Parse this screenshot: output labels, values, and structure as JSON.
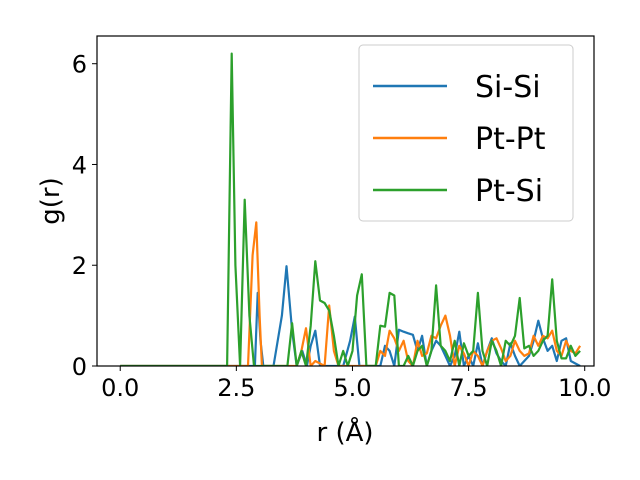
{
  "chart_data": {
    "type": "line",
    "title": "",
    "xlabel": "r (Å)",
    "ylabel": "g(r)",
    "xlim": [
      -0.5,
      10.2
    ],
    "ylim": [
      0,
      6.55
    ],
    "xticks": [
      0.0,
      2.5,
      5.0,
      7.5,
      10.0
    ],
    "xtick_labels": [
      "0.0",
      "2.5",
      "5.0",
      "7.5",
      "10.0"
    ],
    "yticks": [
      0,
      2,
      4,
      6
    ],
    "ytick_labels": [
      "0",
      "2",
      "4",
      "6"
    ],
    "grid": false,
    "legend_position": "top-right",
    "series": [
      {
        "name": "Si-Si",
        "color": "#1f77b4",
        "x": [
          0.0,
          2.9,
          2.96,
          3.02,
          3.08,
          3.3,
          3.48,
          3.58,
          3.7,
          3.8,
          3.92,
          4.02,
          4.1,
          4.2,
          4.3,
          4.8,
          4.95,
          5.05,
          5.15,
          5.6,
          5.7,
          5.8,
          5.9,
          6.0,
          6.1,
          6.2,
          6.3,
          6.4,
          6.5,
          6.6,
          6.7,
          6.8,
          6.9,
          7.0,
          7.1,
          7.2,
          7.3,
          7.4,
          7.5,
          7.6,
          7.7,
          7.8,
          7.9,
          8.0,
          8.1,
          8.2,
          8.3,
          8.4,
          8.5,
          8.6,
          8.7,
          8.8,
          8.9,
          9.0,
          9.1,
          9.2,
          9.3,
          9.4,
          9.5,
          9.6,
          9.7,
          9.8,
          9.9
        ],
        "values": [
          0.0,
          0.0,
          1.45,
          0.5,
          0.0,
          0.0,
          1.0,
          1.98,
          0.7,
          0.0,
          0.3,
          0.0,
          0.4,
          0.7,
          0.0,
          0.0,
          0.5,
          0.98,
          0.0,
          0.0,
          0.4,
          0.3,
          0.0,
          0.72,
          0.68,
          0.65,
          0.62,
          0.3,
          0.6,
          0.0,
          0.3,
          0.5,
          0.4,
          0.2,
          0.0,
          0.2,
          0.68,
          0.0,
          0.2,
          0.0,
          0.45,
          0.0,
          0.3,
          0.55,
          0.25,
          0.1,
          0.0,
          0.45,
          0.2,
          0.0,
          0.1,
          0.2,
          0.5,
          0.9,
          0.55,
          0.3,
          0.4,
          0.1,
          0.5,
          0.55,
          0.1,
          0.05,
          0.0
        ]
      },
      {
        "name": "Pt-Pt",
        "color": "#ff7f0e",
        "x": [
          0.0,
          2.75,
          2.85,
          2.93,
          3.0,
          3.05,
          3.8,
          3.9,
          4.0,
          4.1,
          4.2,
          4.4,
          4.5,
          4.6,
          4.7,
          5.5,
          5.6,
          5.7,
          5.8,
          5.9,
          6.0,
          6.1,
          6.2,
          6.3,
          6.4,
          6.5,
          6.6,
          6.7,
          6.8,
          6.9,
          7.0,
          7.1,
          7.2,
          7.3,
          7.4,
          7.5,
          7.6,
          7.7,
          7.8,
          7.9,
          8.0,
          8.1,
          8.2,
          8.3,
          8.4,
          8.5,
          8.6,
          8.7,
          8.8,
          8.9,
          9.0,
          9.1,
          9.2,
          9.3,
          9.4,
          9.5,
          9.6,
          9.7,
          9.8,
          9.9
        ],
        "values": [
          0.0,
          0.0,
          2.2,
          2.85,
          1.0,
          0.0,
          0.0,
          0.3,
          0.75,
          0.0,
          0.1,
          0.0,
          1.2,
          0.3,
          0.0,
          0.0,
          0.3,
          0.2,
          0.7,
          0.55,
          0.3,
          0.5,
          0.1,
          0.0,
          0.5,
          0.2,
          0.25,
          0.6,
          0.55,
          0.8,
          1.0,
          0.6,
          0.0,
          0.4,
          0.25,
          0.0,
          0.3,
          0.2,
          0.0,
          0.3,
          0.5,
          0.55,
          0.35,
          0.1,
          0.2,
          0.5,
          0.3,
          0.2,
          0.25,
          0.6,
          0.4,
          0.6,
          0.55,
          0.7,
          0.3,
          0.2,
          0.5,
          0.3,
          0.25,
          0.4
        ]
      },
      {
        "name": "Pt-Si",
        "color": "#2ca02c",
        "x": [
          0.0,
          2.3,
          2.4,
          2.48,
          2.58,
          2.68,
          2.78,
          2.88,
          3.0,
          3.6,
          3.7,
          3.8,
          3.9,
          4.0,
          4.1,
          4.2,
          4.3,
          4.4,
          4.5,
          4.6,
          4.7,
          4.8,
          4.9,
          5.0,
          5.1,
          5.2,
          5.3,
          5.5,
          5.6,
          5.7,
          5.8,
          5.9,
          6.0,
          6.1,
          6.2,
          6.3,
          6.4,
          6.5,
          6.6,
          6.7,
          6.8,
          6.9,
          7.0,
          7.1,
          7.2,
          7.3,
          7.4,
          7.5,
          7.6,
          7.7,
          7.8,
          7.9,
          8.0,
          8.1,
          8.2,
          8.3,
          8.4,
          8.5,
          8.6,
          8.7,
          8.8,
          8.9,
          9.0,
          9.1,
          9.2,
          9.3,
          9.4,
          9.5,
          9.6,
          9.7,
          9.8,
          9.9
        ],
        "values": [
          0.0,
          0.0,
          6.2,
          2.0,
          0.0,
          3.3,
          1.0,
          0.0,
          0.0,
          0.0,
          0.85,
          0.0,
          0.3,
          0.0,
          0.8,
          2.08,
          1.3,
          1.25,
          1.1,
          0.6,
          0.0,
          0.3,
          0.0,
          0.3,
          1.4,
          1.82,
          0.0,
          0.0,
          0.8,
          0.78,
          1.45,
          1.4,
          0.0,
          0.0,
          0.2,
          0.0,
          0.3,
          0.4,
          0.0,
          0.3,
          1.6,
          0.4,
          0.3,
          0.1,
          0.5,
          0.0,
          0.45,
          0.2,
          0.3,
          1.45,
          0.3,
          0.0,
          0.5,
          0.3,
          0.0,
          0.5,
          0.4,
          0.6,
          1.35,
          0.35,
          0.4,
          0.2,
          0.3,
          0.5,
          0.6,
          1.72,
          0.5,
          0.15,
          0.15,
          0.4,
          0.2,
          0.3
        ]
      }
    ]
  }
}
